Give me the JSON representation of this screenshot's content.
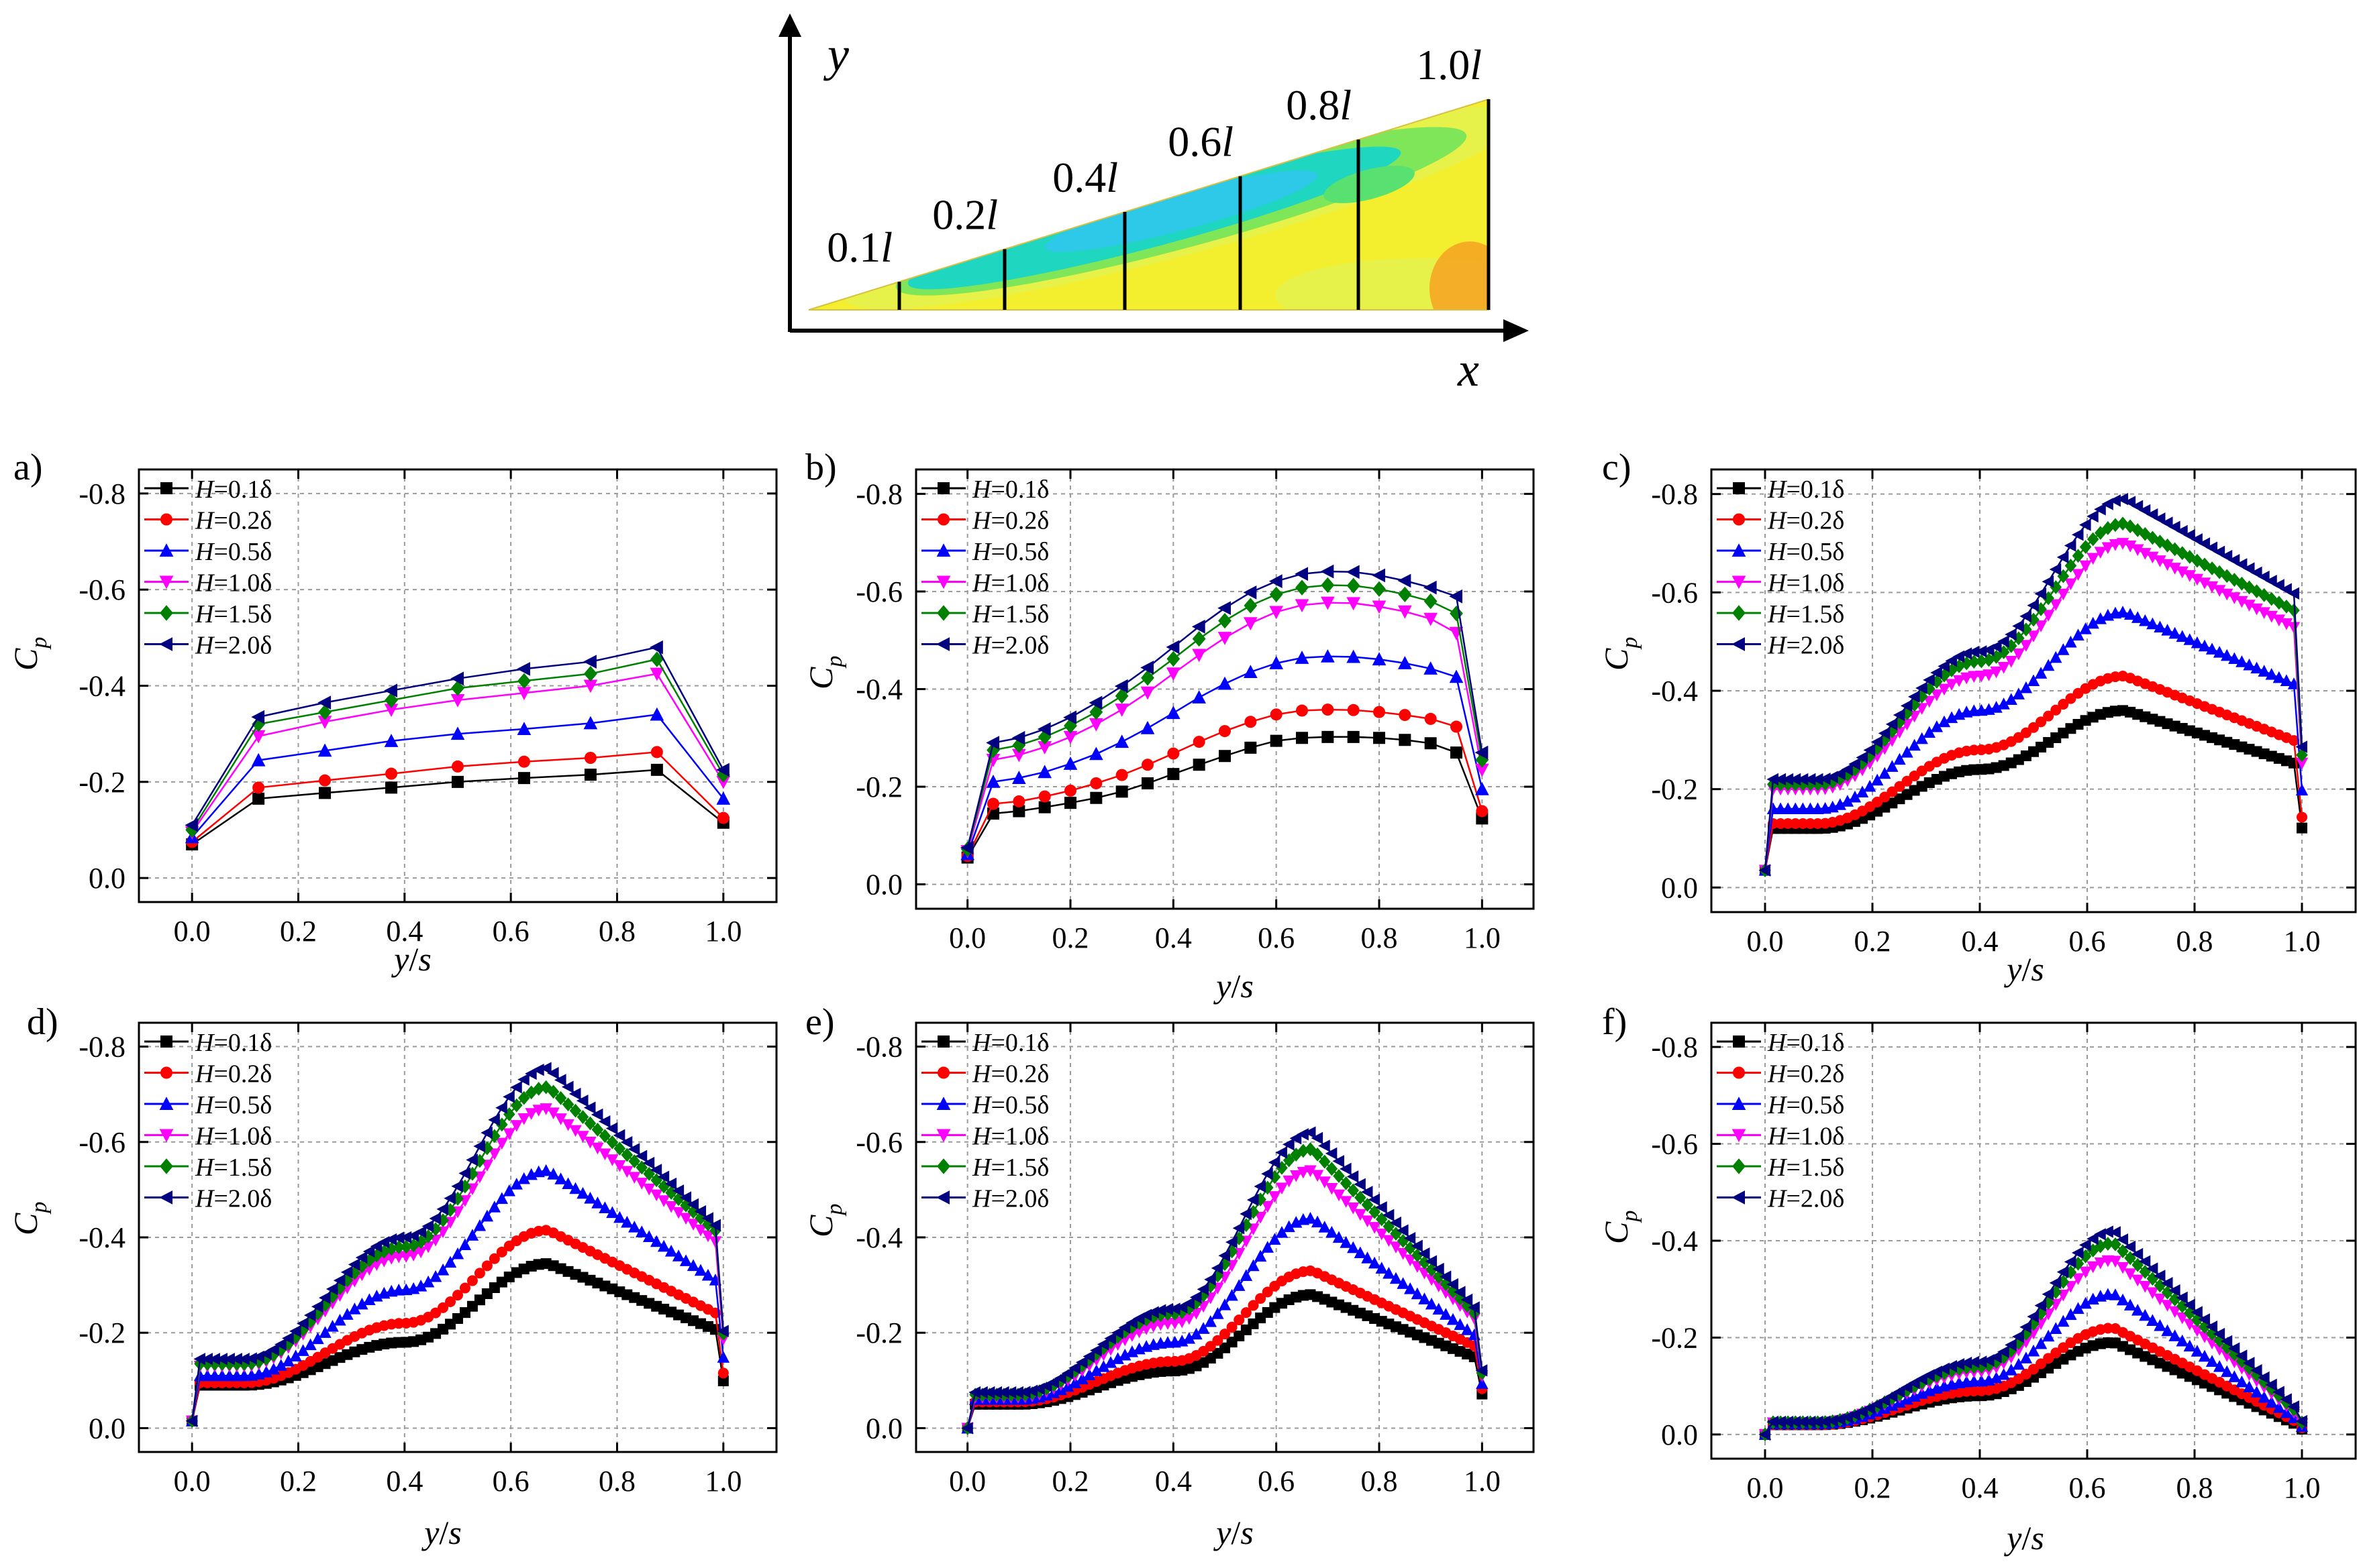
{
  "schematic": {
    "axis_x": "x",
    "axis_y": "y",
    "stations": [
      {
        "prefix": "0.1",
        "var": "l"
      },
      {
        "prefix": "0.2",
        "var": "l"
      },
      {
        "prefix": "0.4",
        "var": "l"
      },
      {
        "prefix": "0.6",
        "var": "l"
      },
      {
        "prefix": "0.8",
        "var": "l"
      },
      {
        "prefix": "1.0",
        "var": "l"
      }
    ],
    "colors": {
      "background": "#f3ee2e",
      "outer_band": "#e6f24a",
      "middle": "#7fe65a",
      "core": "#1fd6c0",
      "deep": "#2ec8e8",
      "warm": "#f5a624"
    }
  },
  "legend_entries": [
    {
      "var": "H",
      "rest": "=0.1δ",
      "color": "#000000",
      "marker": "square"
    },
    {
      "var": "H",
      "rest": "=0.2δ",
      "color": "#ff0000",
      "marker": "circle"
    },
    {
      "var": "H",
      "rest": "=0.5δ",
      "color": "#0000ff",
      "marker": "triangle-up"
    },
    {
      "var": "H",
      "rest": "=1.0δ",
      "color": "#ff00ff",
      "marker": "triangle-down"
    },
    {
      "var": "H",
      "rest": "=1.5δ",
      "color": "#008000",
      "marker": "diamond"
    },
    {
      "var": "H",
      "rest": "=2.0δ",
      "color": "#000080",
      "marker": "triangle-left"
    }
  ],
  "axis_labels": {
    "x_var1": "y",
    "x_sep": "/",
    "x_var2": "s",
    "y_main": "C",
    "y_sub": "p"
  },
  "chart_data": [
    {
      "type": "line",
      "panel": "a)",
      "xlabel": "y/s",
      "ylabel": "Cp",
      "xlim": [
        -0.1,
        1.1
      ],
      "ylim": [
        -0.85,
        0.05
      ],
      "y_inverted": true,
      "x_ticks": [
        "0.0",
        "0.2",
        "0.4",
        "0.6",
        "0.8",
        "1.0"
      ],
      "y_ticks": [
        "-0.8",
        "-0.6",
        "-0.4",
        "-0.2",
        "0.0"
      ],
      "x": [
        0.0,
        0.125,
        0.25,
        0.375,
        0.5,
        0.625,
        0.75,
        0.875,
        1.0
      ],
      "series": [
        {
          "name": "H=0.1δ",
          "values": [
            -0.07,
            -0.165,
            -0.177,
            -0.188,
            -0.2,
            -0.208,
            -0.215,
            -0.225,
            -0.115
          ]
        },
        {
          "name": "H=0.2δ",
          "values": [
            -0.075,
            -0.188,
            -0.203,
            -0.217,
            -0.232,
            -0.242,
            -0.25,
            -0.262,
            -0.125
          ]
        },
        {
          "name": "H=0.5δ",
          "values": [
            -0.085,
            -0.245,
            -0.265,
            -0.285,
            -0.3,
            -0.31,
            -0.322,
            -0.34,
            -0.165
          ]
        },
        {
          "name": "H=1.0δ",
          "values": [
            -0.095,
            -0.295,
            -0.325,
            -0.35,
            -0.37,
            -0.385,
            -0.4,
            -0.425,
            -0.2
          ]
        },
        {
          "name": "H=1.5δ",
          "values": [
            -0.1,
            -0.32,
            -0.345,
            -0.37,
            -0.395,
            -0.41,
            -0.425,
            -0.455,
            -0.215
          ]
        },
        {
          "name": "H=2.0δ",
          "values": [
            -0.11,
            -0.335,
            -0.365,
            -0.39,
            -0.415,
            -0.435,
            -0.45,
            -0.48,
            -0.225
          ]
        }
      ]
    },
    {
      "type": "line",
      "panel": "b)",
      "xlabel": "y/s",
      "ylabel": "Cp",
      "xlim": [
        -0.1,
        1.1
      ],
      "ylim": [
        -0.85,
        0.05
      ],
      "y_inverted": true,
      "x_ticks": [
        "0.0",
        "0.2",
        "0.4",
        "0.6",
        "0.8",
        "1.0"
      ],
      "y_ticks": [
        "-0.8",
        "-0.6",
        "-0.4",
        "-0.2",
        "0.0"
      ],
      "x": [
        0.0,
        0.05,
        0.1,
        0.15,
        0.2,
        0.25,
        0.3,
        0.35,
        0.4,
        0.45,
        0.5,
        0.55,
        0.6,
        0.65,
        0.7,
        0.75,
        0.8,
        0.85,
        0.9,
        0.95,
        1.0
      ],
      "series": [
        {
          "name": "H=0.1δ",
          "values": [
            -0.055,
            -0.145,
            -0.15,
            -0.158,
            -0.167,
            -0.177,
            -0.19,
            -0.207,
            -0.226,
            -0.245,
            -0.263,
            -0.28,
            -0.294,
            -0.3,
            -0.302,
            -0.302,
            -0.3,
            -0.296,
            -0.289,
            -0.27,
            -0.135
          ]
        },
        {
          "name": "H=0.2δ",
          "values": [
            -0.058,
            -0.165,
            -0.17,
            -0.18,
            -0.192,
            -0.207,
            -0.224,
            -0.245,
            -0.268,
            -0.292,
            -0.314,
            -0.333,
            -0.348,
            -0.356,
            -0.358,
            -0.357,
            -0.353,
            -0.347,
            -0.339,
            -0.323,
            -0.15
          ]
        },
        {
          "name": "H=0.5δ",
          "values": [
            -0.062,
            -0.21,
            -0.218,
            -0.23,
            -0.247,
            -0.267,
            -0.292,
            -0.32,
            -0.351,
            -0.383,
            -0.411,
            -0.435,
            -0.453,
            -0.464,
            -0.467,
            -0.466,
            -0.461,
            -0.453,
            -0.442,
            -0.425,
            -0.195
          ]
        },
        {
          "name": "H=1.0δ",
          "values": [
            -0.068,
            -0.255,
            -0.265,
            -0.281,
            -0.302,
            -0.328,
            -0.358,
            -0.393,
            -0.432,
            -0.47,
            -0.505,
            -0.535,
            -0.558,
            -0.572,
            -0.577,
            -0.576,
            -0.569,
            -0.559,
            -0.544,
            -0.515,
            -0.235
          ]
        },
        {
          "name": "H=1.5δ",
          "values": [
            -0.072,
            -0.275,
            -0.285,
            -0.302,
            -0.325,
            -0.353,
            -0.386,
            -0.423,
            -0.462,
            -0.503,
            -0.54,
            -0.571,
            -0.594,
            -0.608,
            -0.613,
            -0.612,
            -0.605,
            -0.594,
            -0.58,
            -0.555,
            -0.255
          ]
        },
        {
          "name": "H=2.0δ",
          "values": [
            -0.075,
            -0.29,
            -0.3,
            -0.318,
            -0.342,
            -0.372,
            -0.406,
            -0.444,
            -0.486,
            -0.528,
            -0.566,
            -0.598,
            -0.621,
            -0.636,
            -0.641,
            -0.64,
            -0.633,
            -0.622,
            -0.608,
            -0.59,
            -0.27
          ]
        }
      ]
    },
    {
      "type": "line",
      "panel": "c)",
      "xlabel": "y/s",
      "ylabel": "Cp",
      "xlim": [
        -0.1,
        1.1
      ],
      "ylim": [
        -0.85,
        0.05
      ],
      "y_inverted": true,
      "x_ticks": [
        "0.0",
        "0.2",
        "0.4",
        "0.6",
        "0.8",
        "1.0"
      ],
      "y_ticks": [
        "-0.8",
        "-0.6",
        "-0.4",
        "-0.2",
        "0.0"
      ],
      "peaks": {
        "H=0.1δ": -0.36,
        "H=0.2δ": -0.43,
        "H=0.5δ": -0.56,
        "H=1.0δ": -0.7,
        "H=1.5δ": -0.74,
        "H=2.0δ": -0.79
      },
      "series": [
        {
          "name": "H=0.1δ",
          "values_at": {
            "0.0": -0.035,
            "0.1": -0.12,
            "0.4": -0.24,
            "0.67": -0.36,
            "1.0": -0.22
          }
        },
        {
          "name": "H=0.2δ",
          "values_at": {
            "0.0": -0.035,
            "0.1": -0.13,
            "0.4": -0.28,
            "0.67": -0.43,
            "1.0": -0.26
          }
        },
        {
          "name": "H=0.5δ",
          "values_at": {
            "0.0": -0.035,
            "0.1": -0.16,
            "0.4": -0.36,
            "0.67": -0.56,
            "1.0": -0.36
          }
        },
        {
          "name": "H=1.0δ",
          "values_at": {
            "0.0": -0.035,
            "0.1": -0.2,
            "0.4": -0.43,
            "0.67": -0.7,
            "1.0": -0.46
          }
        },
        {
          "name": "H=1.5δ",
          "values_at": {
            "0.0": -0.035,
            "0.1": -0.21,
            "0.4": -0.46,
            "0.67": -0.74,
            "1.0": -0.49
          }
        },
        {
          "name": "H=2.0δ",
          "values_at": {
            "0.0": -0.035,
            "0.1": -0.22,
            "0.4": -0.48,
            "0.67": -0.79,
            "1.0": -0.52
          }
        }
      ]
    },
    {
      "type": "line",
      "panel": "d)",
      "xlabel": "y/s",
      "ylabel": "Cp",
      "xlim": [
        -0.1,
        1.1
      ],
      "ylim": [
        -0.85,
        0.05
      ],
      "y_inverted": true,
      "x_ticks": [
        "0.0",
        "0.2",
        "0.4",
        "0.6",
        "0.8",
        "1.0"
      ],
      "y_ticks": [
        "-0.8",
        "-0.6",
        "-0.4",
        "-0.2",
        "0.0"
      ],
      "series": [
        {
          "name": "H=0.1δ",
          "values_at": {
            "0.0": -0.015,
            "0.1": -0.09,
            "0.4": -0.18,
            "0.67": -0.345,
            "1.0": -0.18
          }
        },
        {
          "name": "H=0.2δ",
          "values_at": {
            "0.0": -0.015,
            "0.1": -0.095,
            "0.4": -0.22,
            "0.67": -0.415,
            "1.0": -0.21
          }
        },
        {
          "name": "H=0.5δ",
          "values_at": {
            "0.0": -0.015,
            "0.1": -0.11,
            "0.4": -0.29,
            "0.67": -0.54,
            "1.0": -0.27
          }
        },
        {
          "name": "H=1.0δ",
          "values_at": {
            "0.0": -0.015,
            "0.1": -0.13,
            "0.4": -0.36,
            "0.67": -0.67,
            "1.0": -0.34
          }
        },
        {
          "name": "H=1.5δ",
          "values_at": {
            "0.0": -0.015,
            "0.1": -0.135,
            "0.4": -0.38,
            "0.67": -0.715,
            "1.0": -0.36
          }
        },
        {
          "name": "H=2.0δ",
          "values_at": {
            "0.0": -0.015,
            "0.1": -0.145,
            "0.4": -0.4,
            "0.67": -0.755,
            "1.0": -0.37
          }
        }
      ]
    },
    {
      "type": "line",
      "panel": "e)",
      "xlabel": "y/s",
      "ylabel": "Cp",
      "xlim": [
        -0.1,
        1.1
      ],
      "ylim": [
        -0.85,
        0.05
      ],
      "y_inverted": true,
      "x_ticks": [
        "0.0",
        "0.2",
        "0.4",
        "0.6",
        "0.8",
        "1.0"
      ],
      "y_ticks": [
        "-0.8",
        "-0.6",
        "-0.4",
        "-0.2",
        "0.0"
      ],
      "series": [
        {
          "name": "H=0.1δ",
          "values_at": {
            "0.0": 0.0,
            "0.1": -0.05,
            "0.4": -0.12,
            "0.67": -0.28,
            "1.0": -0.13
          }
        },
        {
          "name": "H=0.2δ",
          "values_at": {
            "0.0": 0.0,
            "0.1": -0.055,
            "0.4": -0.14,
            "0.67": -0.33,
            "1.0": -0.15
          }
        },
        {
          "name": "H=0.5δ",
          "values_at": {
            "0.0": 0.0,
            "0.1": -0.06,
            "0.4": -0.18,
            "0.67": -0.44,
            "1.0": -0.17
          }
        },
        {
          "name": "H=1.0δ",
          "values_at": {
            "0.0": 0.0,
            "0.1": -0.065,
            "0.4": -0.22,
            "0.67": -0.54,
            "1.0": -0.2
          }
        },
        {
          "name": "H=1.5δ",
          "values_at": {
            "0.0": 0.0,
            "0.1": -0.07,
            "0.4": -0.24,
            "0.67": -0.585,
            "1.0": -0.21
          }
        },
        {
          "name": "H=2.0δ",
          "values_at": {
            "0.0": 0.0,
            "0.1": -0.075,
            "0.4": -0.25,
            "0.67": -0.62,
            "1.0": -0.22
          }
        }
      ]
    },
    {
      "type": "line",
      "panel": "f)",
      "xlabel": "y/s",
      "ylabel": "Cp",
      "xlim": [
        -0.1,
        1.1
      ],
      "ylim": [
        -0.85,
        0.05
      ],
      "y_inverted": true,
      "x_ticks": [
        "0.0",
        "0.2",
        "0.4",
        "0.6",
        "0.8",
        "1.0"
      ],
      "y_ticks": [
        "-0.8",
        "-0.6",
        "-0.4",
        "-0.2",
        "0.0"
      ],
      "series": [
        {
          "name": "H=0.1δ",
          "values_at": {
            "0.0": 0.0,
            "0.1": -0.02,
            "0.4": -0.08,
            "0.65": -0.19,
            "1.0": -0.02
          }
        },
        {
          "name": "H=0.2δ",
          "values_at": {
            "0.0": 0.0,
            "0.1": -0.02,
            "0.4": -0.09,
            "0.65": -0.22,
            "1.0": -0.025
          }
        },
        {
          "name": "H=0.5δ",
          "values_at": {
            "0.0": 0.0,
            "0.1": -0.022,
            "0.4": -0.11,
            "0.65": -0.29,
            "1.0": -0.03
          }
        },
        {
          "name": "H=1.0δ",
          "values_at": {
            "0.0": 0.0,
            "0.1": -0.024,
            "0.4": -0.13,
            "0.65": -0.36,
            "1.0": -0.04
          }
        },
        {
          "name": "H=1.5δ",
          "values_at": {
            "0.0": 0.0,
            "0.1": -0.025,
            "0.4": -0.14,
            "0.65": -0.395,
            "1.0": -0.045
          }
        },
        {
          "name": "H=2.0δ",
          "values_at": {
            "0.0": 0.0,
            "0.1": -0.026,
            "0.4": -0.15,
            "0.65": -0.42,
            "1.0": -0.05
          }
        }
      ]
    }
  ]
}
